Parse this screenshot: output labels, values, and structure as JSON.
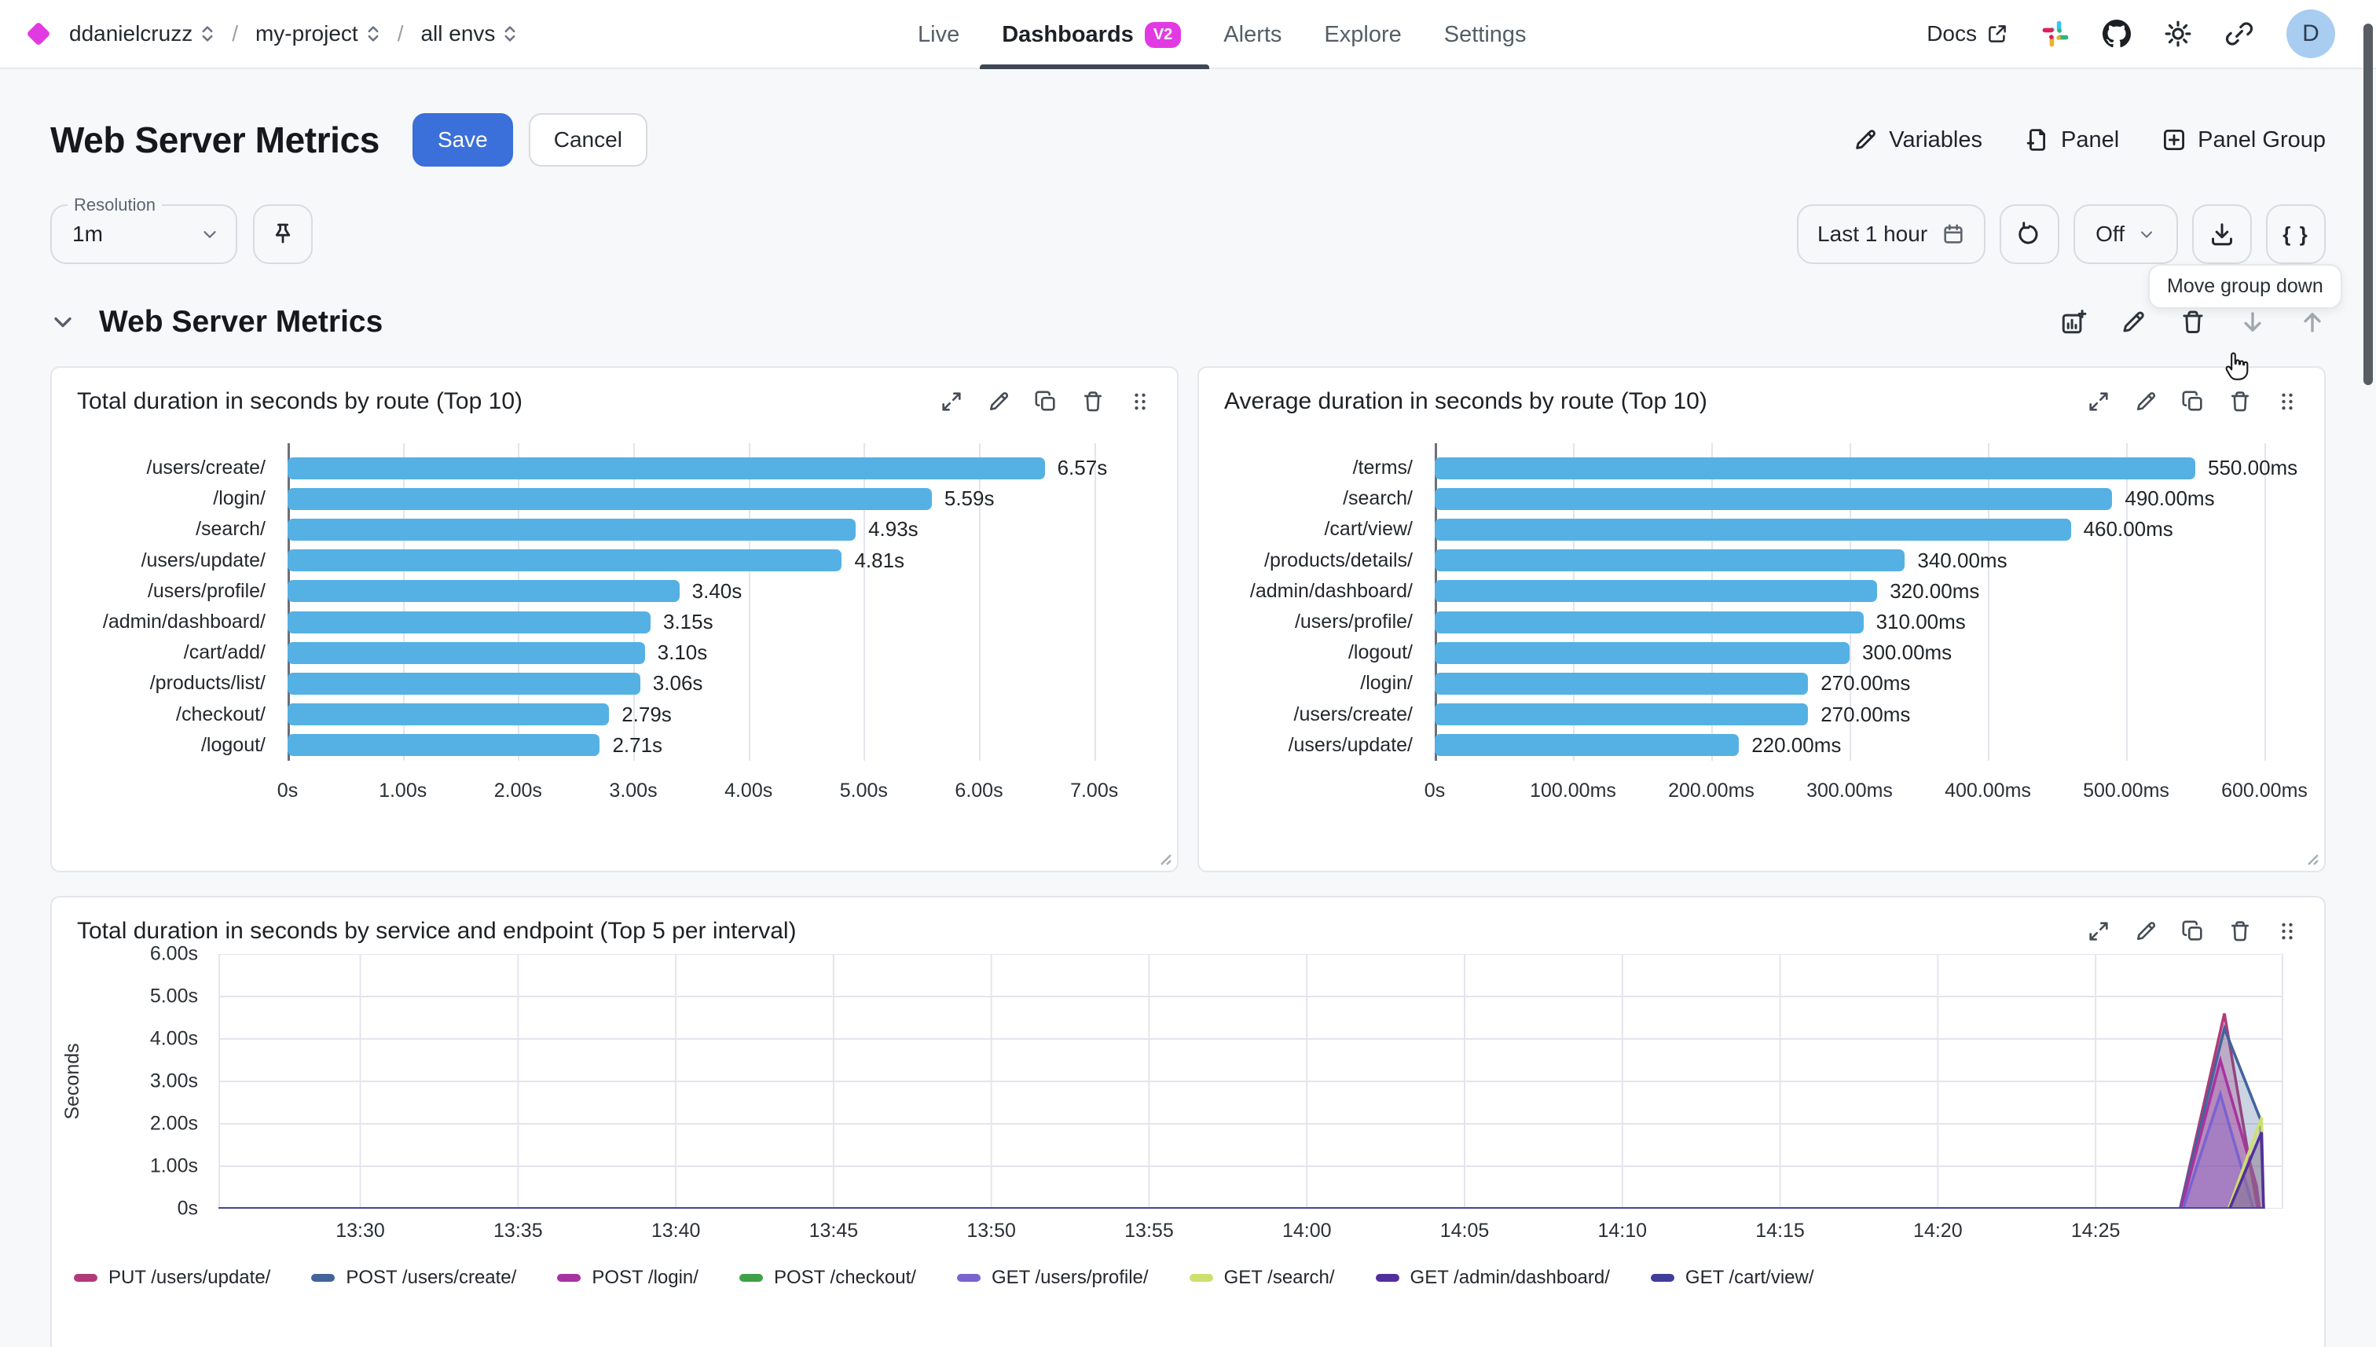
{
  "topbar": {
    "breadcrumb": {
      "org": "ddanielcruzz",
      "project": "my-project",
      "env": "all envs",
      "separator": "/"
    },
    "tabs": [
      {
        "label": "Live"
      },
      {
        "label": "Dashboards",
        "badge": "V2",
        "active": true
      },
      {
        "label": "Alerts"
      },
      {
        "label": "Explore"
      },
      {
        "label": "Settings"
      }
    ],
    "docs_label": "Docs",
    "avatar_initial": "D"
  },
  "toolbar": {
    "title": "Web Server Metrics",
    "save_label": "Save",
    "cancel_label": "Cancel",
    "variables_label": "Variables",
    "panel_label": "Panel",
    "panel_group_label": "Panel Group"
  },
  "controls": {
    "resolution_label": "Resolution",
    "resolution_value": "1m",
    "time_range_label": "Last 1 hour",
    "refresh_mode_label": "Off",
    "braces_label": "{ }",
    "tooltip_text": "Move group down"
  },
  "group": {
    "title": "Web Server Metrics"
  },
  "colors": {
    "accent_magenta": "#e23ae2",
    "primary_blue": "#3b6fd9",
    "bar_blue": "#55b1e4",
    "gridline": "#e4e4ee"
  },
  "chart_data": [
    {
      "type": "bar",
      "orientation": "horizontal",
      "title": "Total duration in seconds by route (Top 10)",
      "categories": [
        "/users/create/",
        "/login/",
        "/search/",
        "/users/update/",
        "/users/profile/",
        "/admin/dashboard/",
        "/cart/add/",
        "/products/list/",
        "/checkout/",
        "/logout/"
      ],
      "values": [
        6.57,
        5.59,
        4.93,
        4.81,
        3.4,
        3.15,
        3.1,
        3.06,
        2.79,
        2.71
      ],
      "value_labels": [
        "6.57s",
        "5.59s",
        "4.93s",
        "4.81s",
        "3.40s",
        "3.15s",
        "3.10s",
        "3.06s",
        "2.79s",
        "2.71s"
      ],
      "xticks": {
        "labels": [
          "0s",
          "1.00s",
          "2.00s",
          "3.00s",
          "4.00s",
          "5.00s",
          "6.00s",
          "7.00s"
        ],
        "values": [
          0,
          1,
          2,
          3,
          4,
          5,
          6,
          7
        ]
      },
      "axis_max": 7.5,
      "unit": "s"
    },
    {
      "type": "bar",
      "orientation": "horizontal",
      "title": "Average duration in seconds by route (Top 10)",
      "categories": [
        "/terms/",
        "/search/",
        "/cart/view/",
        "/products/details/",
        "/admin/dashboard/",
        "/users/profile/",
        "/logout/",
        "/login/",
        "/users/create/",
        "/users/update/"
      ],
      "values": [
        550,
        490,
        460,
        340,
        320,
        310,
        300,
        270,
        270,
        220
      ],
      "value_labels": [
        "550.00ms",
        "490.00ms",
        "460.00ms",
        "340.00ms",
        "320.00ms",
        "310.00ms",
        "300.00ms",
        "270.00ms",
        "270.00ms",
        "220.00ms"
      ],
      "xticks": {
        "labels": [
          "0s",
          "100.00ms",
          "200.00ms",
          "300.00ms",
          "400.00ms",
          "500.00ms",
          "600.00ms"
        ],
        "values": [
          0,
          100,
          200,
          300,
          400,
          500,
          600
        ]
      },
      "axis_max": 625,
      "unit": "ms"
    },
    {
      "type": "area",
      "title": "Total duration in seconds by service and endpoint (Top 5 per interval)",
      "ylabel": "Seconds",
      "ymax": 6,
      "yticks": [
        "6.00s",
        "5.00s",
        "4.00s",
        "3.00s",
        "2.00s",
        "1.00s",
        "0s"
      ],
      "xticks": [
        "13:30",
        "13:35",
        "13:40",
        "13:45",
        "13:50",
        "13:55",
        "14:00",
        "14:05",
        "14:10",
        "14:15",
        "14:20",
        "14:25"
      ],
      "xtick_start_frac": 0.0687,
      "xtick_step_frac": 0.0764,
      "series": [
        {
          "name": "PUT /users/update/",
          "color": "#b23a78",
          "points": [
            [
              0,
              0
            ],
            [
              0.95,
              0
            ],
            [
              0.9715,
              4.6
            ],
            [
              0.9875,
              0
            ]
          ]
        },
        {
          "name": "POST /users/create/",
          "color": "#44639b",
          "points": [
            [
              0,
              0
            ],
            [
              0.95,
              0
            ],
            [
              0.9715,
              4.25
            ],
            [
              0.989,
              2.1
            ],
            [
              0.9905,
              0
            ]
          ]
        },
        {
          "name": "POST /login/",
          "color": "#a833a0",
          "points": [
            [
              0,
              0
            ],
            [
              0.9505,
              0
            ],
            [
              0.9695,
              3.5
            ],
            [
              0.987,
              0.55
            ],
            [
              0.9885,
              0
            ]
          ]
        },
        {
          "name": "POST /checkout/",
          "color": "#3fa045",
          "points": [
            [
              0,
              0
            ],
            [
              0.9905,
              0
            ]
          ]
        },
        {
          "name": "GET /users/profile/",
          "color": "#7a63d1",
          "points": [
            [
              0,
              0
            ],
            [
              0.9515,
              0
            ],
            [
              0.9695,
              2.7
            ],
            [
              0.9855,
              0
            ],
            [
              0.9905,
              0
            ]
          ]
        },
        {
          "name": "GET /search/",
          "color": "#cde06e",
          "points": [
            [
              0,
              0
            ],
            [
              0.9735,
              0
            ],
            [
              0.9895,
              2.15
            ],
            [
              0.9905,
              0
            ]
          ]
        },
        {
          "name": "GET /admin/dashboard/",
          "color": "#532f9e",
          "points": [
            [
              0,
              0
            ],
            [
              0.974,
              0
            ],
            [
              0.9895,
              1.8
            ],
            [
              0.9905,
              0
            ]
          ]
        },
        {
          "name": "GET /cart/view/",
          "color": "#413d99",
          "points": [
            [
              0,
              0
            ],
            [
              0.9905,
              0
            ]
          ]
        }
      ]
    }
  ]
}
